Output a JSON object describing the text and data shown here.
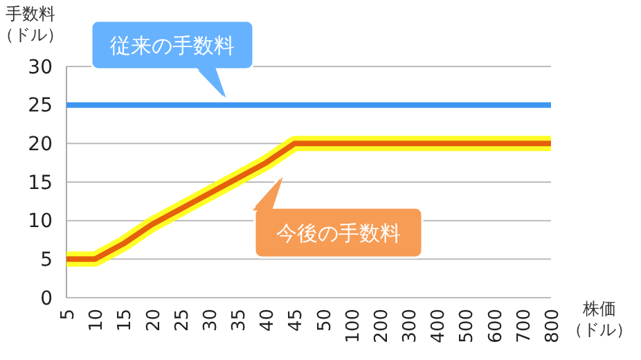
{
  "chart_data": {
    "type": "line",
    "ylabel": "手数料（ドル）",
    "xlabel": "株価（ドル）",
    "categories": [
      "5",
      "10",
      "15",
      "20",
      "25",
      "30",
      "35",
      "40",
      "45",
      "50",
      "100",
      "200",
      "300",
      "400",
      "500",
      "600",
      "700",
      "800"
    ],
    "series": [
      {
        "name": "従来の手数料",
        "color": "#3d96f0",
        "values": [
          25,
          25,
          25,
          25,
          25,
          25,
          25,
          25,
          25,
          25,
          25,
          25,
          25,
          25,
          25,
          25,
          25,
          25
        ]
      },
      {
        "name": "今後の手数料",
        "color": "#e5600c",
        "values": [
          5,
          5,
          7,
          9.5,
          11.5,
          13.5,
          15.5,
          17.5,
          20,
          20,
          20,
          20,
          20,
          20,
          20,
          20,
          20,
          20
        ]
      }
    ],
    "ylim": [
      0,
      30
    ],
    "yticks": [
      0,
      5,
      10,
      15,
      20,
      25,
      30
    ],
    "grid": "y",
    "marker": "none",
    "line_style": "solid"
  }
}
